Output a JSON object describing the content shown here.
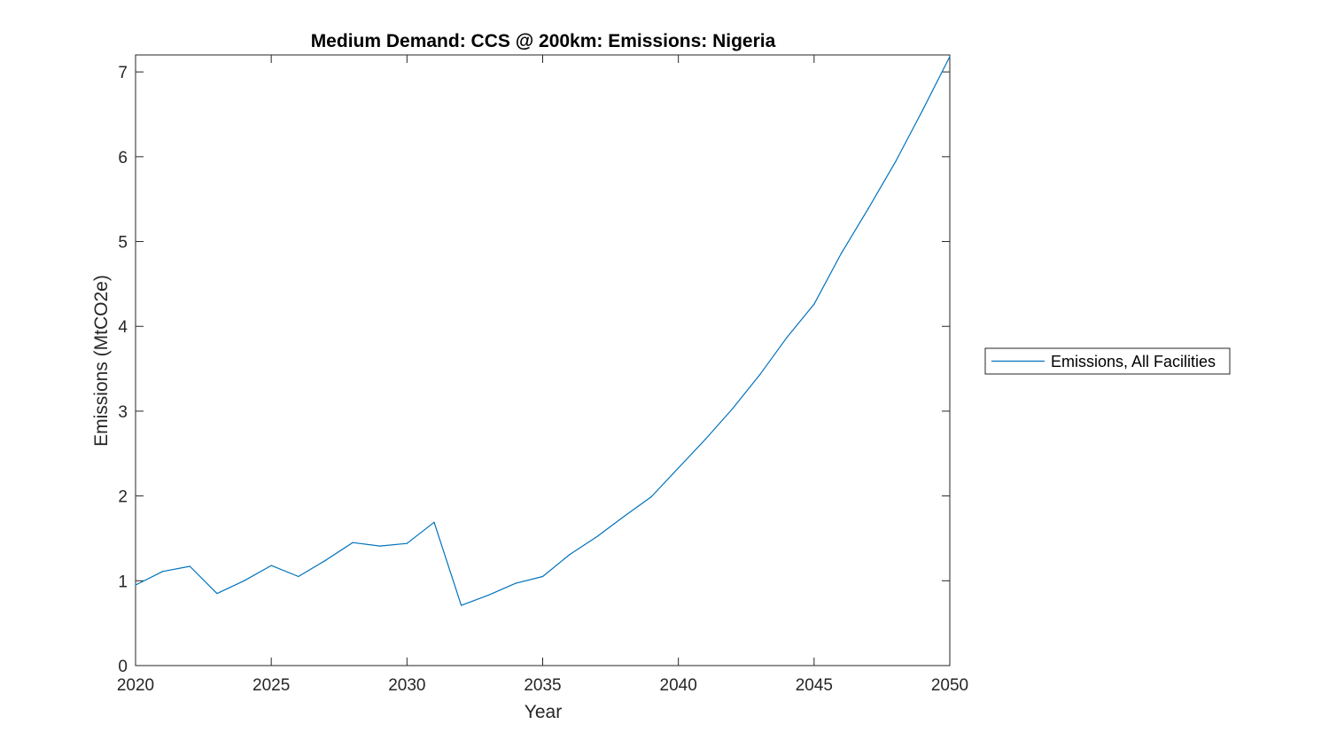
{
  "chart_data": {
    "type": "line",
    "title": "Medium Demand: CCS @ 200km: Emissions: Nigeria",
    "xlabel": "Year",
    "ylabel": "Emissions (MtCO2e)",
    "xlim": [
      2020,
      2050
    ],
    "ylim": [
      0,
      7.2
    ],
    "xticks": [
      2020,
      2025,
      2030,
      2035,
      2040,
      2045,
      2050
    ],
    "yticks": [
      0,
      1,
      2,
      3,
      4,
      5,
      6,
      7
    ],
    "grid": false,
    "legend_position": "outside-right",
    "series": [
      {
        "name": "Emissions, All Facilities",
        "color": "#0072BD",
        "x": [
          2020,
          2021,
          2022,
          2023,
          2024,
          2025,
          2026,
          2027,
          2028,
          2029,
          2030,
          2031,
          2032,
          2033,
          2034,
          2035,
          2036,
          2037,
          2038,
          2039,
          2040,
          2041,
          2042,
          2043,
          2044,
          2045,
          2046,
          2047,
          2048,
          2049,
          2050
        ],
        "y": [
          0.95,
          1.11,
          1.17,
          0.85,
          1.0,
          1.18,
          1.05,
          1.24,
          1.45,
          1.41,
          1.44,
          1.69,
          0.71,
          0.83,
          0.97,
          1.05,
          1.31,
          1.52,
          1.76,
          1.99,
          2.33,
          2.67,
          3.03,
          3.43,
          3.87,
          4.26,
          4.86,
          5.39,
          5.94,
          6.55,
          7.18
        ]
      }
    ]
  }
}
